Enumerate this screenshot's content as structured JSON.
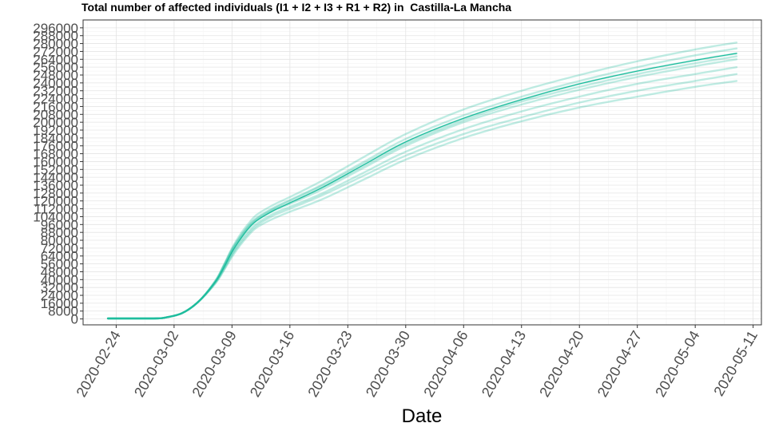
{
  "chart_data": {
    "type": "line",
    "title": "Total number of affected individuals (I1 + I2 + I3 + R1 + R2) in  Castilla-La Mancha",
    "xlabel": "Date",
    "ylabel": "",
    "x_ticks": [
      "2020-02-24",
      "2020-03-02",
      "2020-03-09",
      "2020-03-16",
      "2020-03-23",
      "2020-03-30",
      "2020-04-06",
      "2020-04-13",
      "2020-04-20",
      "2020-04-27",
      "2020-05-04",
      "2020-05-11"
    ],
    "y_ticks": [
      0,
      8000,
      16000,
      24000,
      32000,
      40000,
      48000,
      56000,
      64000,
      72000,
      80000,
      88000,
      96000,
      104000,
      112000,
      120000,
      128000,
      136000,
      144000,
      152000,
      160000,
      168000,
      176000,
      184000,
      192000,
      200000,
      208000,
      216000,
      224000,
      232000,
      240000,
      248000,
      256000,
      264000,
      272000,
      280000,
      288000,
      296000
    ],
    "xlim": [
      "2020-02-20",
      "2020-05-12"
    ],
    "ylim": [
      -6000,
      304000
    ],
    "grid": true,
    "color": "#1abc9c",
    "series": [
      {
        "x": [
          "2020-02-23",
          "2020-02-26",
          "2020-02-29",
          "2020-03-01",
          "2020-03-03",
          "2020-03-05",
          "2020-03-07",
          "2020-03-08",
          "2020-03-09",
          "2020-03-10",
          "2020-03-11",
          "2020-03-12",
          "2020-03-14",
          "2020-03-16",
          "2020-03-20",
          "2020-03-25",
          "2020-03-30",
          "2020-04-06",
          "2020-04-13",
          "2020-04-20",
          "2020-04-27",
          "2020-05-04",
          "2020-05-09"
        ],
        "values": [
          500,
          500,
          600,
          1500,
          6000,
          18000,
          38000,
          52000,
          68000,
          81000,
          92000,
          100000,
          110000,
          117000,
          132000,
          154000,
          176000,
          200000,
          218000,
          233000,
          246000,
          257000,
          264000
        ]
      },
      {
        "x": [
          "2020-02-23",
          "2020-02-26",
          "2020-02-29",
          "2020-03-01",
          "2020-03-03",
          "2020-03-05",
          "2020-03-07",
          "2020-03-08",
          "2020-03-09",
          "2020-03-10",
          "2020-03-11",
          "2020-03-12",
          "2020-03-14",
          "2020-03-16",
          "2020-03-20",
          "2020-03-25",
          "2020-03-30",
          "2020-04-06",
          "2020-04-13",
          "2020-04-20",
          "2020-04-27",
          "2020-05-04",
          "2020-05-09"
        ],
        "values": [
          500,
          500,
          600,
          1500,
          6000,
          18000,
          39000,
          54000,
          71000,
          84000,
          95000,
          103000,
          113000,
          121000,
          137000,
          160000,
          183000,
          207000,
          226000,
          242000,
          256000,
          268000,
          275000
        ]
      },
      {
        "x": [
          "2020-02-23",
          "2020-02-26",
          "2020-02-29",
          "2020-03-01",
          "2020-03-03",
          "2020-03-05",
          "2020-03-07",
          "2020-03-08",
          "2020-03-09",
          "2020-03-10",
          "2020-03-11",
          "2020-03-12",
          "2020-03-14",
          "2020-03-16",
          "2020-03-20",
          "2020-03-25",
          "2020-03-30",
          "2020-04-06",
          "2020-04-13",
          "2020-04-20",
          "2020-04-27",
          "2020-05-04",
          "2020-05-09"
        ],
        "values": [
          500,
          500,
          600,
          1500,
          6000,
          18000,
          37000,
          51000,
          66000,
          79000,
          89000,
          97000,
          107000,
          114000,
          128000,
          149000,
          170000,
          193000,
          211000,
          226000,
          239000,
          249000,
          256000
        ]
      },
      {
        "x": [
          "2020-02-23",
          "2020-02-26",
          "2020-02-29",
          "2020-03-01",
          "2020-03-03",
          "2020-03-05",
          "2020-03-07",
          "2020-03-08",
          "2020-03-09",
          "2020-03-10",
          "2020-03-11",
          "2020-03-12",
          "2020-03-14",
          "2020-03-16",
          "2020-03-20",
          "2020-03-25",
          "2020-03-30",
          "2020-04-06",
          "2020-04-13",
          "2020-04-20",
          "2020-04-27",
          "2020-05-04",
          "2020-05-09"
        ],
        "values": [
          500,
          500,
          600,
          1500,
          6000,
          18000,
          36000,
          49000,
          63000,
          75000,
          85000,
          93000,
          102000,
          109000,
          122000,
          142000,
          162000,
          184000,
          201000,
          215000,
          226000,
          236000,
          242000
        ]
      },
      {
        "x": [
          "2020-02-23",
          "2020-02-26",
          "2020-02-29",
          "2020-03-01",
          "2020-03-03",
          "2020-03-05",
          "2020-03-07",
          "2020-03-08",
          "2020-03-09",
          "2020-03-10",
          "2020-03-11",
          "2020-03-12",
          "2020-03-14",
          "2020-03-16",
          "2020-03-20",
          "2020-03-25",
          "2020-03-30",
          "2020-04-06",
          "2020-04-13",
          "2020-04-20",
          "2020-04-27",
          "2020-05-04",
          "2020-05-09"
        ],
        "values": [
          500,
          500,
          600,
          1500,
          6000,
          18000,
          39000,
          55000,
          72000,
          86000,
          97000,
          106000,
          116000,
          124000,
          141000,
          165000,
          188000,
          213000,
          232000,
          248000,
          262000,
          274000,
          281000
        ]
      },
      {
        "x": [
          "2020-02-23",
          "2020-02-26",
          "2020-02-29",
          "2020-03-01",
          "2020-03-03",
          "2020-03-05",
          "2020-03-07",
          "2020-03-08",
          "2020-03-09",
          "2020-03-10",
          "2020-03-11",
          "2020-03-12",
          "2020-03-14",
          "2020-03-16",
          "2020-03-20",
          "2020-03-25",
          "2020-03-30",
          "2020-04-06",
          "2020-04-13",
          "2020-04-20",
          "2020-04-27",
          "2020-05-04",
          "2020-05-09"
        ],
        "values": [
          500,
          500,
          600,
          1500,
          6000,
          18000,
          38000,
          53000,
          69000,
          82000,
          93000,
          101000,
          111000,
          118000,
          134000,
          156000,
          178000,
          202000,
          221000,
          236000,
          249000,
          260000,
          267000
        ]
      },
      {
        "x": [
          "2020-02-23",
          "2020-02-26",
          "2020-02-29",
          "2020-03-01",
          "2020-03-03",
          "2020-03-05",
          "2020-03-07",
          "2020-03-08",
          "2020-03-09",
          "2020-03-10",
          "2020-03-11",
          "2020-03-12",
          "2020-03-14",
          "2020-03-16",
          "2020-03-20",
          "2020-03-25",
          "2020-03-30",
          "2020-04-06",
          "2020-04-13",
          "2020-04-20",
          "2020-04-27",
          "2020-05-04",
          "2020-05-09"
        ],
        "values": [
          500,
          500,
          600,
          1500,
          6000,
          18000,
          37000,
          50000,
          65000,
          77000,
          87000,
          95000,
          105000,
          112000,
          126000,
          146000,
          166000,
          188000,
          205000,
          220000,
          232000,
          242000,
          249000
        ]
      },
      {
        "x": [
          "2020-02-23",
          "2020-02-26",
          "2020-02-29",
          "2020-03-01",
          "2020-03-03",
          "2020-03-05",
          "2020-03-07",
          "2020-03-08",
          "2020-03-09",
          "2020-03-10",
          "2020-03-11",
          "2020-03-12",
          "2020-03-14",
          "2020-03-16",
          "2020-03-20",
          "2020-03-25",
          "2020-03-30",
          "2020-04-06",
          "2020-04-13",
          "2020-04-20",
          "2020-04-27",
          "2020-05-04",
          "2020-05-09"
        ],
        "values": [
          500,
          500,
          600,
          1500,
          6000,
          18000,
          38000,
          54000,
          70000,
          83000,
          94000,
          102000,
          112000,
          120000,
          136000,
          158000,
          180000,
          204000,
          223000,
          239000,
          252000,
          263000,
          270000
        ]
      },
      {
        "x": [
          "2020-02-23",
          "2020-02-26",
          "2020-02-29",
          "2020-03-01",
          "2020-03-03",
          "2020-03-05",
          "2020-03-07",
          "2020-03-08",
          "2020-03-09",
          "2020-03-10",
          "2020-03-11",
          "2020-03-12",
          "2020-03-14",
          "2020-03-16",
          "2020-03-20",
          "2020-03-25",
          "2020-03-30",
          "2020-04-06",
          "2020-04-13",
          "2020-04-20",
          "2020-04-27",
          "2020-05-04",
          "2020-05-09"
        ],
        "values": [
          500,
          500,
          600,
          1500,
          6000,
          18000,
          38000,
          52000,
          68000,
          81000,
          92000,
          100000,
          110000,
          118000,
          134000,
          157000,
          180000,
          204000,
          223000,
          239000,
          252000,
          263000,
          270000
        ]
      }
    ]
  }
}
